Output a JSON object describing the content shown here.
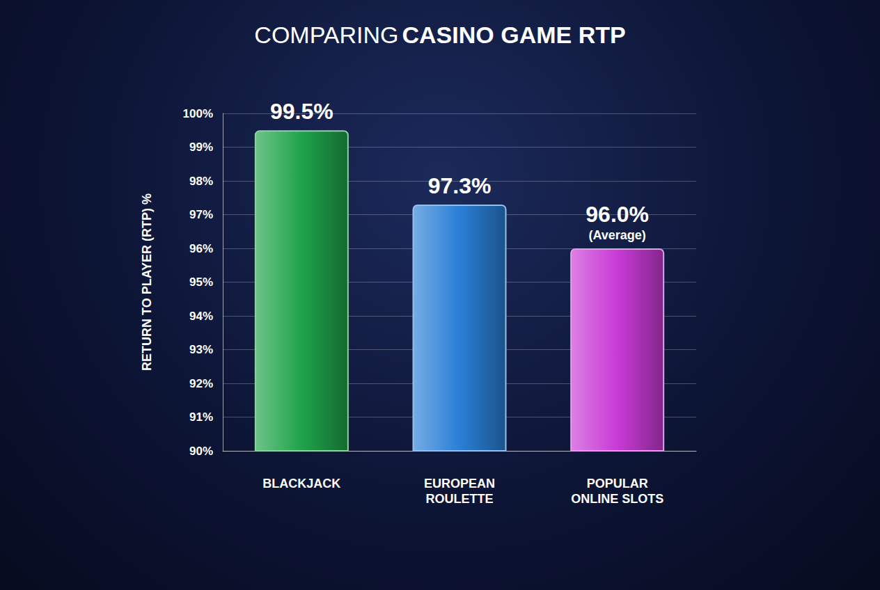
{
  "chart_data": {
    "type": "bar",
    "title": "COMPARING CASINO GAME RTP",
    "y_label": "RETURN TO PLAYER (RTP) %",
    "categories": [
      "BLACKJACK",
      "EUROPEAN\nROULETTE",
      "POPULAR\nONLINE SLOTS"
    ],
    "values": [
      99.5,
      97.3,
      96.0
    ],
    "value_labels": [
      "99.5%",
      "97.3%",
      "96.0%"
    ],
    "colors": [
      "#1fa34a",
      "#2a7fd6",
      "#c93ad6"
    ],
    "annotations": [
      {
        "text": "(Average)",
        "category": "POPULAR\nONLINE SLOTS"
      }
    ],
    "ylim": [
      90,
      100
    ],
    "yticks": [
      {
        "value": 90,
        "label": "90%"
      },
      {
        "value": 91,
        "label": "91%"
      },
      {
        "value": 92,
        "label": "92%"
      },
      {
        "value": 93,
        "label": "93%"
      },
      {
        "value": 94,
        "label": "94%"
      },
      {
        "value": 95,
        "label": "95%"
      },
      {
        "value": 96,
        "label": "96%"
      },
      {
        "value": 97,
        "label": "97%"
      },
      {
        "value": 98,
        "label": "98%"
      },
      {
        "value": 99,
        "label": "99%"
      },
      {
        "value": 100,
        "label": "100%"
      }
    ],
    "grid": true,
    "data_labels": true
  }
}
